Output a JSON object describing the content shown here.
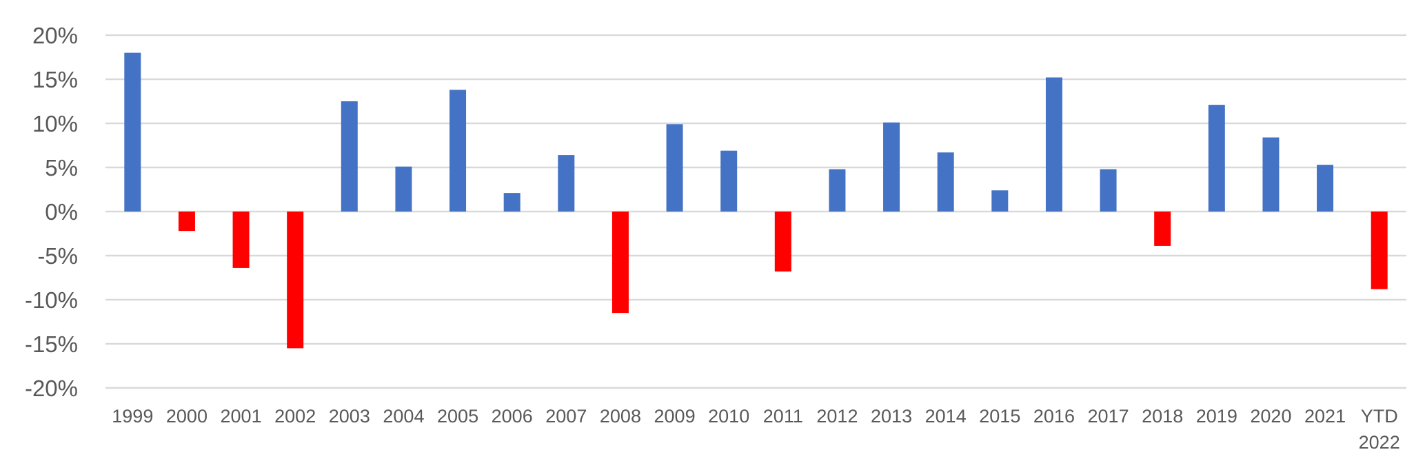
{
  "chart_data": {
    "type": "bar",
    "categories": [
      "1999",
      "2000",
      "2001",
      "2002",
      "2003",
      "2004",
      "2005",
      "2006",
      "2007",
      "2008",
      "2009",
      "2010",
      "2011",
      "2012",
      "2013",
      "2014",
      "2015",
      "2016",
      "2017",
      "2018",
      "2019",
      "2020",
      "2021",
      "YTD 2022"
    ],
    "values": [
      18.0,
      -2.2,
      -6.4,
      -15.5,
      12.5,
      5.1,
      13.8,
      2.1,
      6.4,
      -11.5,
      9.9,
      6.9,
      -6.8,
      4.8,
      10.1,
      6.7,
      2.4,
      15.2,
      4.8,
      -3.9,
      12.1,
      8.4,
      5.3,
      -8.8
    ],
    "ylim": [
      -20,
      20
    ],
    "yticks": [
      20,
      15,
      10,
      5,
      0,
      -5,
      -10,
      -15,
      -20
    ],
    "ytick_labels": [
      "20%",
      "15%",
      "10%",
      "5%",
      "0%",
      "-5%",
      "-10%",
      "-15%",
      "-20%"
    ],
    "grid": true,
    "colors": {
      "positive": "#4472c4",
      "negative": "#ff0000",
      "grid": "#d9d9d9",
      "text": "#595959"
    },
    "title": "",
    "xlabel": "",
    "ylabel": ""
  }
}
